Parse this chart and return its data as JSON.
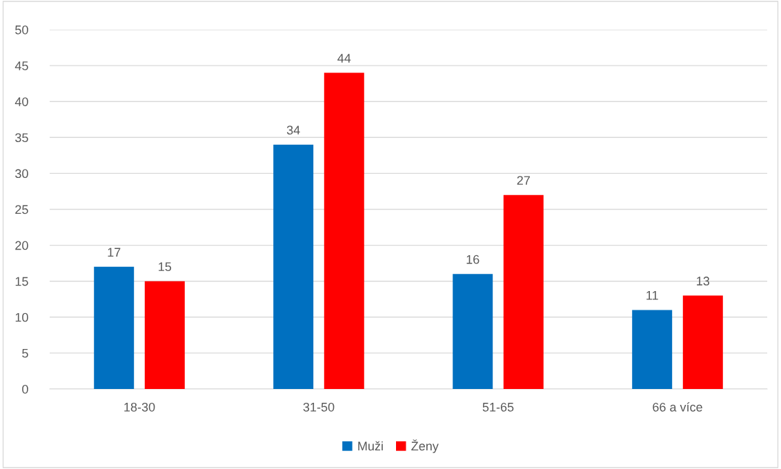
{
  "chart_data": {
    "type": "bar",
    "categories": [
      "18-30",
      "31-50",
      "51-65",
      "66 a více"
    ],
    "series": [
      {
        "name": "Muži",
        "color": "#0070c0",
        "values": [
          17,
          34,
          16,
          11
        ]
      },
      {
        "name": "Ženy",
        "color": "#ff0000",
        "values": [
          15,
          44,
          27,
          13
        ]
      }
    ],
    "ylim": [
      0,
      50
    ],
    "yticks": [
      0,
      5,
      10,
      15,
      20,
      25,
      30,
      35,
      40,
      45,
      50
    ],
    "grid": "y",
    "legend": "bottom",
    "data_labels": true
  }
}
